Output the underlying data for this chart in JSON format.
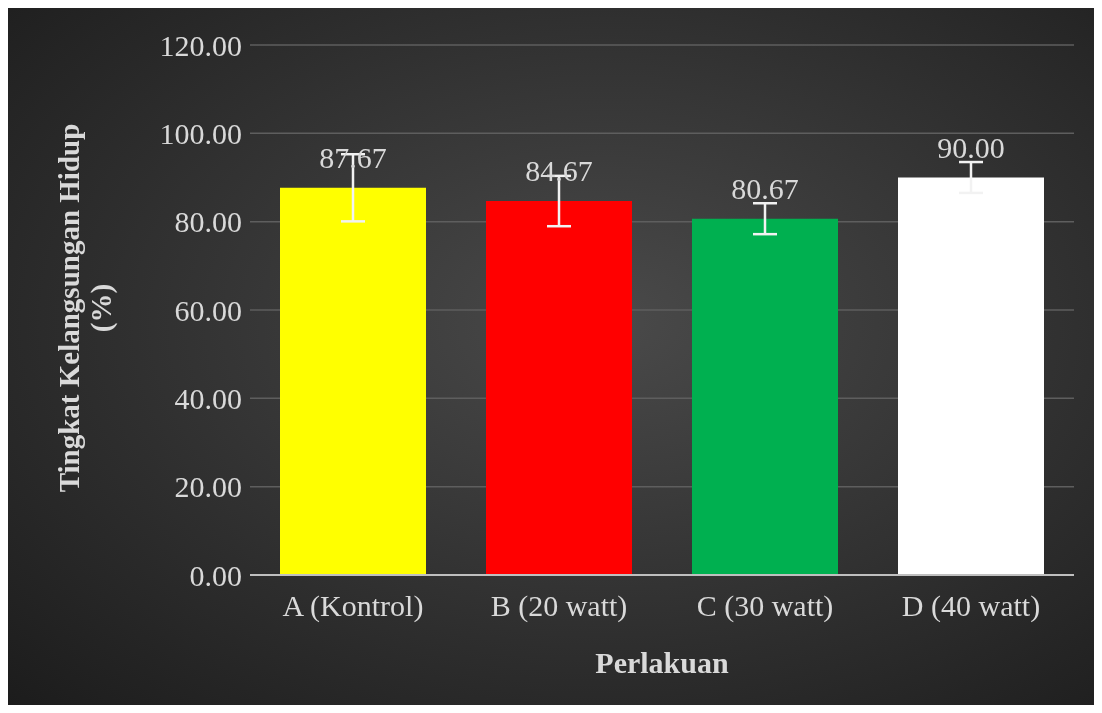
{
  "chart_data": {
    "type": "bar",
    "xlabel": "Perlakuan",
    "ylabel": "Tingkat Kelangsungan Hidup (%)",
    "categories": [
      "A (Kontrol)",
      "B (20 watt)",
      "C (30 watt)",
      "D (40 watt)"
    ],
    "values": [
      87.67,
      84.67,
      80.67,
      90.0
    ],
    "colors": [
      "#ffff00",
      "#ff0000",
      "#00b050",
      "#ffffff"
    ],
    "errors": [
      7.6,
      5.7,
      3.5,
      3.5
    ],
    "value_labels": [
      "87.67",
      "84.67",
      "80.67",
      "90.00"
    ],
    "ylim": [
      0,
      120
    ],
    "yticks": [
      {
        "value": 0,
        "label": "0.00"
      },
      {
        "value": 20,
        "label": "20.00"
      },
      {
        "value": 40,
        "label": "40.00"
      },
      {
        "value": 60,
        "label": "60.00"
      },
      {
        "value": 80,
        "label": "80.00"
      },
      {
        "value": 100,
        "label": "100.00"
      },
      {
        "value": 120,
        "label": "120.00"
      }
    ],
    "grid": "y"
  }
}
